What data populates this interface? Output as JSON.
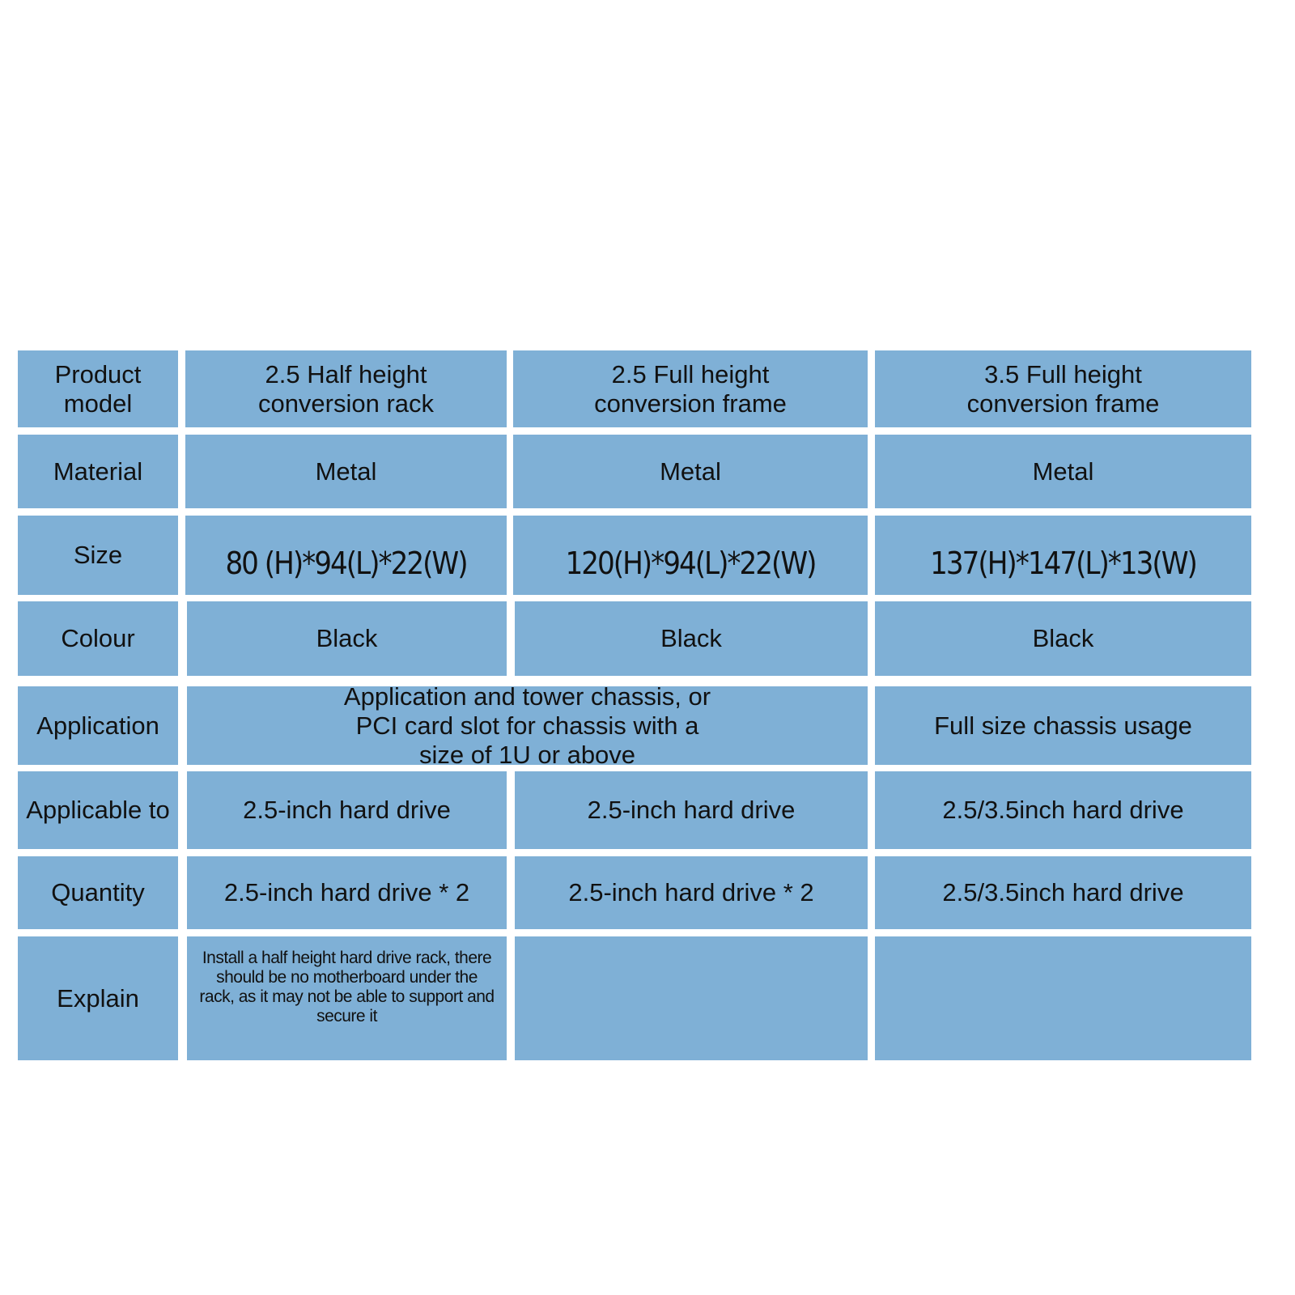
{
  "table": {
    "colors": {
      "cell": "#7fb0d6",
      "grid": "#ffffff"
    },
    "rows": [
      {
        "label": "Product model",
        "values": [
          "2.5 Half height conversion rack",
          "2.5 Full height conversion frame",
          "3.5 Full height conversion frame"
        ]
      },
      {
        "label": "Material",
        "values": [
          "Metal",
          "Metal",
          "Metal"
        ]
      },
      {
        "label": "Size",
        "values": [
          "80 (H)*94(L)*22(W)",
          "120(H)*94(L)*22(W)",
          "137(H)*147(L)*13(W)"
        ]
      },
      {
        "label": "Colour",
        "values": [
          "Black",
          "Black",
          "Black"
        ]
      },
      {
        "label": "Application",
        "values": [
          "Application and tower chassis, or PCI card slot for chassis with a size of 1U or above",
          "Full size chassis usage"
        ]
      },
      {
        "label": "Applicable to",
        "values": [
          "2.5-inch hard drive",
          "2.5-inch hard drive",
          "2.5/3.5inch hard drive"
        ]
      },
      {
        "label": "Quantity",
        "values": [
          "2.5-inch hard drive * 2",
          "2.5-inch hard drive * 2",
          "2.5/3.5inch hard drive"
        ]
      },
      {
        "label": "Explain",
        "values": [
          "Install a half height hard drive rack, there should be no motherboard under the rack, as it may not be able to support and secure it",
          "",
          ""
        ]
      }
    ]
  }
}
